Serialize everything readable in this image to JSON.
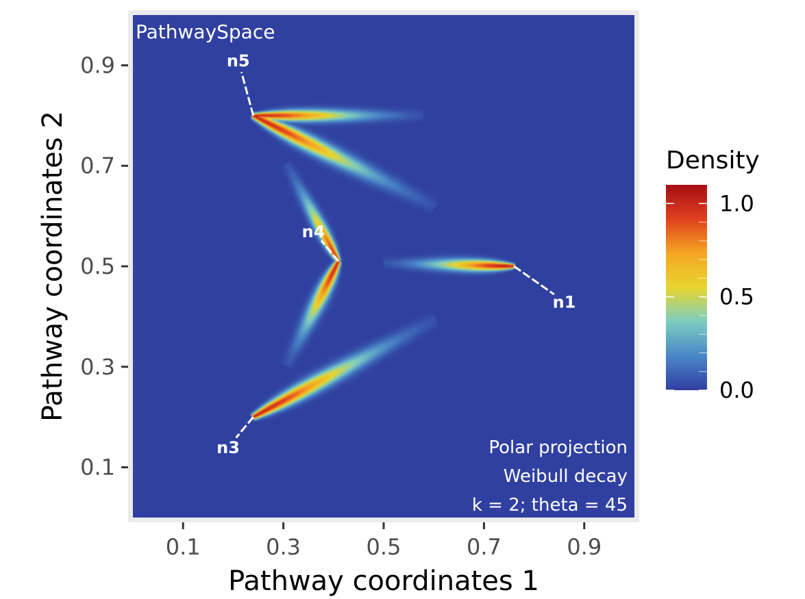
{
  "chart_data": {
    "type": "heatmap",
    "title": "PathwaySpace",
    "xlabel": "Pathway coordinates 1",
    "ylabel": "Pathway coordinates 2",
    "xlim": [
      0,
      1
    ],
    "ylim": [
      0,
      1
    ],
    "x_ticks": [
      0.1,
      0.3,
      0.5,
      0.7,
      0.9
    ],
    "x_tick_labels": [
      "0.1",
      "0.3",
      "0.5",
      "0.7",
      "0.9"
    ],
    "y_ticks": [
      0.1,
      0.3,
      0.5,
      0.7,
      0.9
    ],
    "y_tick_labels": [
      "0.1",
      "0.3",
      "0.5",
      "0.7",
      "0.9"
    ],
    "background_color": "#3040a0",
    "colorscale": [
      "#3040a0",
      "#4a86c8",
      "#7ccdc0",
      "#e8d62e",
      "#f5a623",
      "#e0401e",
      "#a50f15"
    ],
    "legend": {
      "title": "Density",
      "position": "right",
      "range": [
        0,
        1.1
      ],
      "ticks": [
        0.0,
        0.5,
        1.0
      ],
      "tick_labels": [
        "0.0",
        "0.5",
        "1.0"
      ]
    },
    "annotations": [
      "Polar projection",
      "Weibull decay",
      "k = 2; theta = 45"
    ],
    "nodes": [
      {
        "name": "n1",
        "x": 0.76,
        "y": 0.5,
        "label_x": 0.86,
        "label_y": 0.43
      },
      {
        "name": "n3",
        "x": 0.24,
        "y": 0.2,
        "label_x": 0.19,
        "label_y": 0.14
      },
      {
        "name": "n4",
        "x": 0.41,
        "y": 0.51,
        "label_x": 0.36,
        "label_y": 0.57
      },
      {
        "name": "n5",
        "x": 0.24,
        "y": 0.8,
        "label_x": 0.21,
        "label_y": 0.91
      }
    ],
    "plumes": [
      {
        "from": "n1",
        "x0": 0.76,
        "y0": 0.5,
        "x1": 0.56,
        "y1": 0.505,
        "width": 0.012,
        "peak": 1.05
      },
      {
        "from": "n5",
        "x0": 0.24,
        "y0": 0.8,
        "x1": 0.5,
        "y1": 0.8,
        "width": 0.012,
        "peak": 1.0
      },
      {
        "from": "n5",
        "x0": 0.24,
        "y0": 0.8,
        "x1": 0.52,
        "y1": 0.66,
        "width": 0.016,
        "peak": 1.0
      },
      {
        "from": "n4",
        "x0": 0.41,
        "y0": 0.51,
        "x1": 0.33,
        "y1": 0.66,
        "width": 0.012,
        "peak": 0.95
      },
      {
        "from": "n4",
        "x0": 0.41,
        "y0": 0.51,
        "x1": 0.33,
        "y1": 0.35,
        "width": 0.014,
        "peak": 1.0
      },
      {
        "from": "n3",
        "x0": 0.24,
        "y0": 0.2,
        "x1": 0.52,
        "y1": 0.35,
        "width": 0.016,
        "peak": 1.0
      }
    ]
  }
}
